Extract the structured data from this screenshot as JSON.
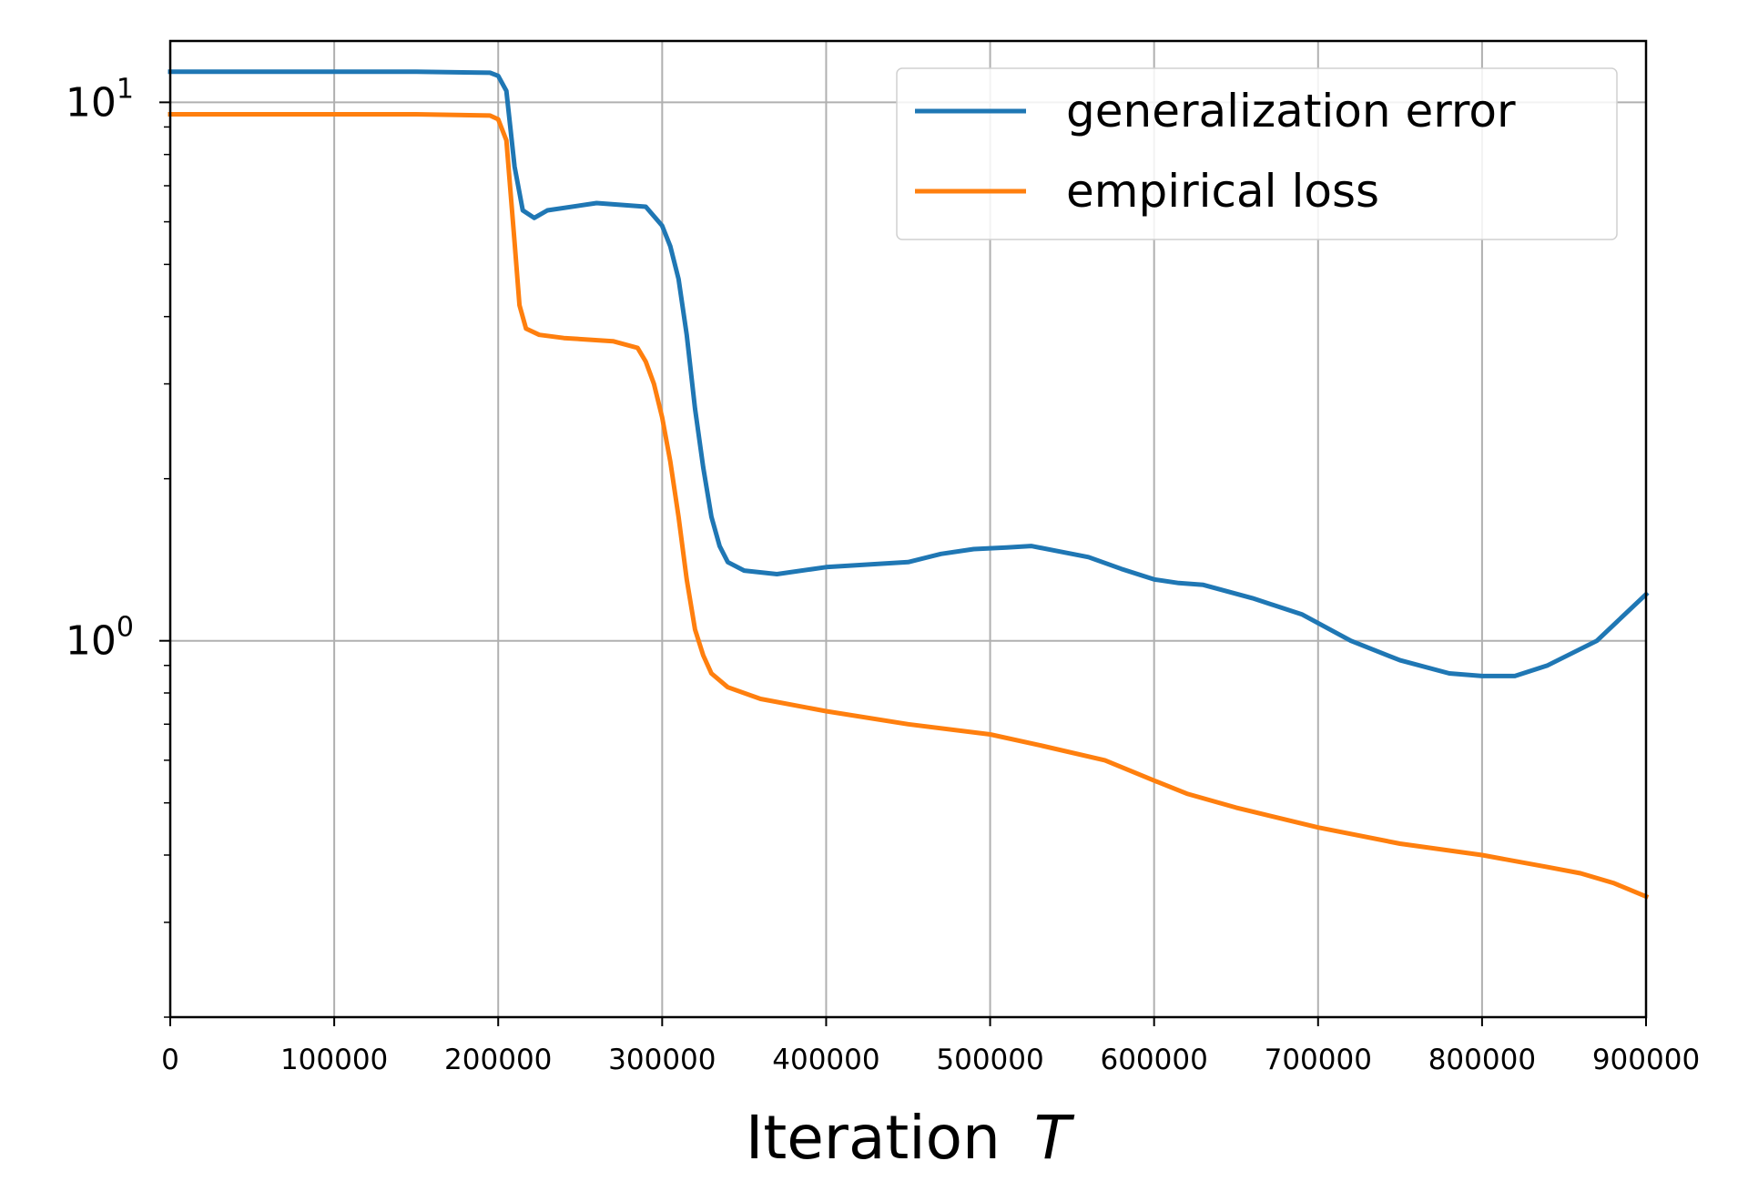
{
  "chart_data": {
    "type": "line",
    "title": "",
    "xlabel": "Iteration",
    "xlabel_symbol": "T",
    "ylabel": "",
    "xlim": [
      0,
      900000
    ],
    "ylim": [
      0.2,
      13
    ],
    "yscale": "log",
    "grid": true,
    "legend_position": "top-right",
    "x_ticks": [
      "0",
      "100000",
      "200000",
      "300000",
      "400000",
      "500000",
      "600000",
      "700000",
      "800000",
      "900000"
    ],
    "y_ticks": [
      {
        "value": 1,
        "base": "10",
        "exp": "0"
      },
      {
        "value": 10,
        "base": "10",
        "exp": "1"
      }
    ],
    "series": [
      {
        "name": "generalization error",
        "color": "#1f77b4",
        "x": [
          0,
          150000,
          195000,
          200000,
          205000,
          210000,
          215000,
          222000,
          230000,
          260000,
          290000,
          300000,
          305000,
          310000,
          315000,
          320000,
          325000,
          330000,
          335000,
          340000,
          350000,
          370000,
          400000,
          450000,
          470000,
          490000,
          510000,
          525000,
          540000,
          560000,
          580000,
          600000,
          615000,
          630000,
          660000,
          690000,
          720000,
          750000,
          780000,
          800000,
          820000,
          840000,
          870000,
          900000
        ],
        "y": [
          11.4,
          11.4,
          11.35,
          11.2,
          10.5,
          7.6,
          6.3,
          6.1,
          6.3,
          6.5,
          6.4,
          5.9,
          5.4,
          4.7,
          3.7,
          2.7,
          2.1,
          1.7,
          1.5,
          1.4,
          1.35,
          1.33,
          1.37,
          1.4,
          1.45,
          1.48,
          1.49,
          1.5,
          1.47,
          1.43,
          1.36,
          1.3,
          1.28,
          1.27,
          1.2,
          1.12,
          1.0,
          0.92,
          0.87,
          0.86,
          0.86,
          0.9,
          1.0,
          1.22
        ]
      },
      {
        "name": "empirical loss",
        "color": "#ff7f0e",
        "x": [
          0,
          150000,
          195000,
          200000,
          205000,
          210000,
          213000,
          217000,
          225000,
          240000,
          270000,
          285000,
          290000,
          295000,
          300000,
          305000,
          310000,
          315000,
          320000,
          325000,
          330000,
          340000,
          360000,
          400000,
          450000,
          500000,
          530000,
          570000,
          600000,
          620000,
          650000,
          700000,
          750000,
          800000,
          840000,
          860000,
          880000,
          900000
        ],
        "y": [
          9.5,
          9.5,
          9.45,
          9.3,
          8.5,
          5.5,
          4.2,
          3.8,
          3.7,
          3.65,
          3.6,
          3.5,
          3.3,
          3.0,
          2.6,
          2.15,
          1.7,
          1.3,
          1.05,
          0.94,
          0.87,
          0.82,
          0.78,
          0.74,
          0.7,
          0.67,
          0.64,
          0.6,
          0.55,
          0.52,
          0.49,
          0.45,
          0.42,
          0.4,
          0.38,
          0.37,
          0.355,
          0.335
        ]
      }
    ]
  }
}
